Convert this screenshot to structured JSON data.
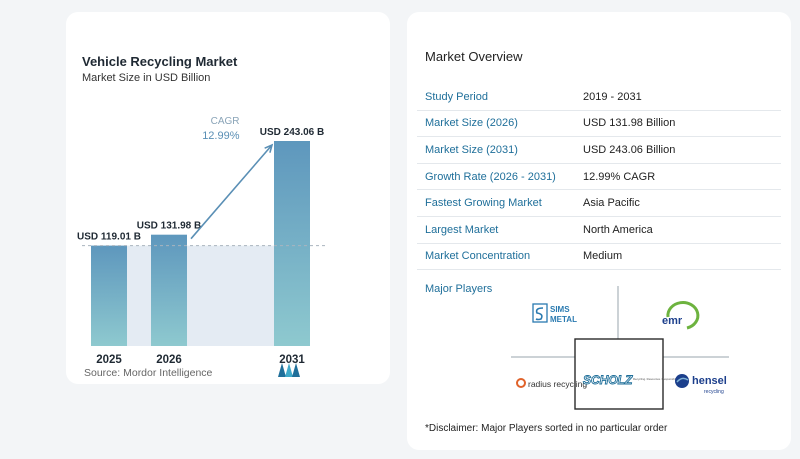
{
  "chart": {
    "title": "Vehicle Recycling Market",
    "subtitle": "Market Size in USD Billion",
    "source": "Source: Mordor Intelligence",
    "cagr_label": "CAGR",
    "cagr_value": "12.99%",
    "colors": {
      "bar": "#5f9ec0",
      "bar_light": "#e4ebf3",
      "arrow": "#5a8fb5",
      "cagr_text": "#5a8fb5"
    }
  },
  "chart_data": {
    "type": "bar",
    "title": "Vehicle Recycling Market",
    "subtitle": "Market Size in USD Billion",
    "categories": [
      "2025",
      "2026",
      "2031"
    ],
    "values": [
      119.01,
      131.98,
      243.06
    ],
    "value_labels": [
      "USD 119.01 B",
      "USD 131.98 B",
      "USD 243.06 B"
    ],
    "ylim": [
      0,
      243.06
    ],
    "annotations": [
      {
        "text": "CAGR 12.99%"
      }
    ],
    "grid": false
  },
  "overview": {
    "title": "Market Overview",
    "rows": [
      {
        "key": "Study Period",
        "value": "2019 - 2031"
      },
      {
        "key": "Market Size (2026)",
        "value": "USD 131.98 Billion"
      },
      {
        "key": "Market Size (2031)",
        "value": "USD 243.06 Billion"
      },
      {
        "key": "Growth Rate (2026 - 2031)",
        "value": "12.99% CAGR"
      },
      {
        "key": "Fastest Growing Market",
        "value": "Asia Pacific"
      },
      {
        "key": "Largest Market",
        "value": "North America"
      },
      {
        "key": "Market Concentration",
        "value": "Medium"
      }
    ],
    "major_players_title": "Major Players",
    "players": {
      "sims_line1": "SIMS",
      "sims_line2": "METAL",
      "emr": "emr",
      "radius": "radius recycling",
      "scholz": "SCHOLZ",
      "scholz_tag": "Recycling. Resources. Responsibility.",
      "hensel": "hensel",
      "hensel_sub": "recycling"
    },
    "disclaimer": "*Disclaimer: Major Players sorted in no particular order"
  }
}
